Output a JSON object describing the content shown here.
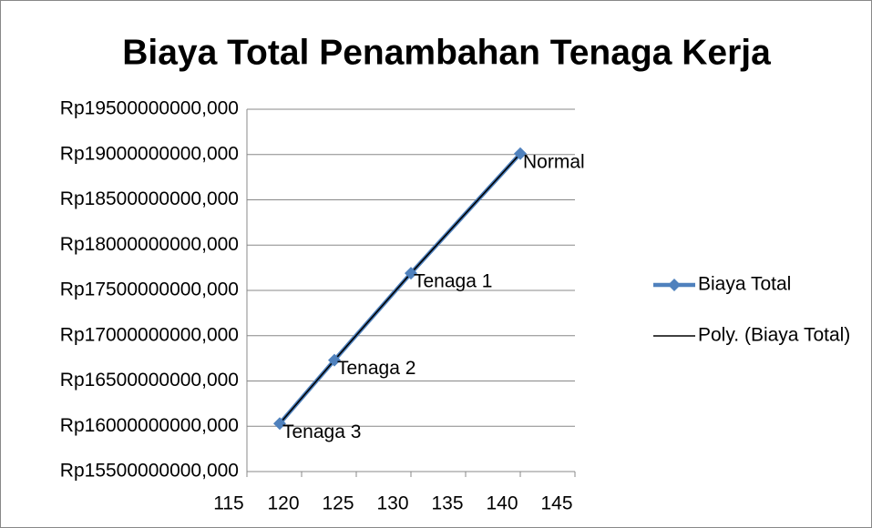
{
  "chart_data": {
    "type": "scatter",
    "title": "Biaya Total Penambahan Tenaga Kerja",
    "x": [
      140,
      130,
      123,
      118
    ],
    "point_labels": [
      "Normal",
      "Tenaga 1",
      "Tenaga 2",
      "Tenaga 3"
    ],
    "series": [
      {
        "name": "Biaya Total",
        "color": "#4f81bd",
        "marker": "diamond",
        "values": [
          19010000000,
          17690000000,
          16730000000,
          16030000000
        ]
      },
      {
        "name": "Poly. (Biaya Total)",
        "color": "#000000",
        "marker": "none",
        "values": [
          19010000000,
          17690000000,
          16730000000,
          16030000000
        ]
      }
    ],
    "xlim": [
      115,
      145
    ],
    "xticks": [
      115,
      120,
      125,
      130,
      135,
      140,
      145
    ],
    "ylim": [
      15500000000,
      19500000000
    ],
    "yticks": [
      {
        "value": 15500000000,
        "label": "Rp15500000000,000"
      },
      {
        "value": 16000000000,
        "label": "Rp16000000000,000"
      },
      {
        "value": 16500000000,
        "label": "Rp16500000000,000"
      },
      {
        "value": 17000000000,
        "label": "Rp17000000000,000"
      },
      {
        "value": 17500000000,
        "label": "Rp17500000000,000"
      },
      {
        "value": 18000000000,
        "label": "Rp18000000000,000"
      },
      {
        "value": 18500000000,
        "label": "Rp18500000000,000"
      },
      {
        "value": 19000000000,
        "label": "Rp19000000000,000"
      },
      {
        "value": 19500000000,
        "label": "Rp19500000000,000"
      }
    ],
    "grid": true,
    "legend": "right"
  }
}
